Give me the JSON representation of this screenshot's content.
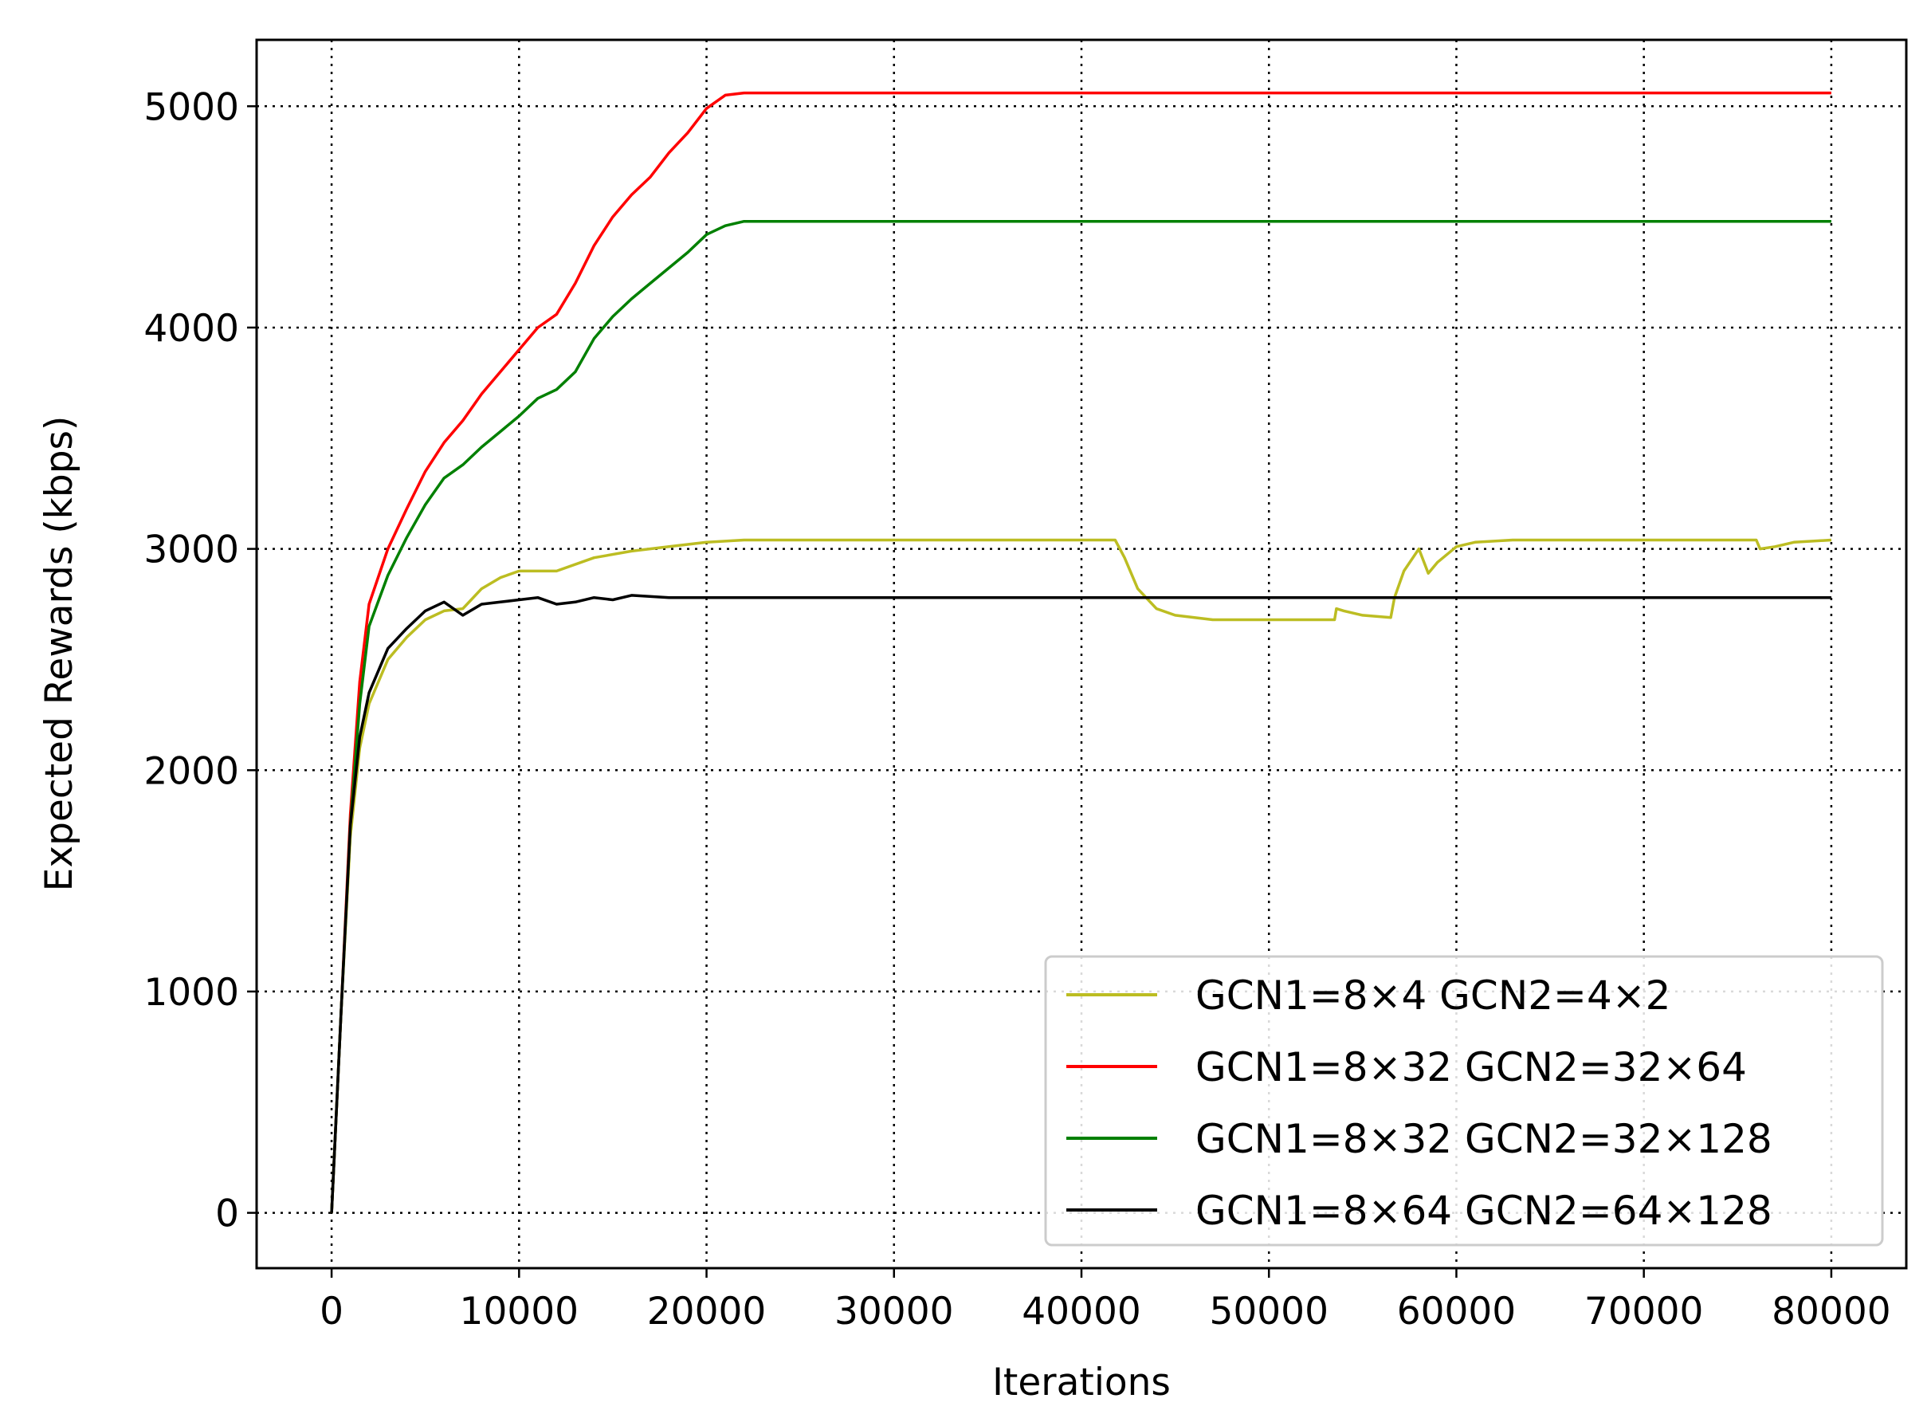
{
  "chart_data": {
    "type": "line",
    "title": "",
    "xlabel": "Iterations",
    "ylabel": "Expected Rewards (kbps)",
    "xlim": [
      -4000,
      84000
    ],
    "ylim": [
      -250,
      5300
    ],
    "xticks": [
      0,
      10000,
      20000,
      30000,
      40000,
      50000,
      60000,
      70000,
      80000
    ],
    "yticks": [
      0,
      1000,
      2000,
      3000,
      4000,
      5000
    ],
    "grid": true,
    "grid_style": "dotted",
    "legend_position": "lower-right",
    "series": [
      {
        "name": "GCN1=8×4   GCN2=4×2",
        "color": "#bcbd22",
        "points": [
          [
            0,
            0
          ],
          [
            500,
            900
          ],
          [
            1000,
            1700
          ],
          [
            1500,
            2100
          ],
          [
            2000,
            2300
          ],
          [
            3000,
            2500
          ],
          [
            4000,
            2600
          ],
          [
            5000,
            2680
          ],
          [
            6000,
            2720
          ],
          [
            7000,
            2730
          ],
          [
            8000,
            2820
          ],
          [
            9000,
            2870
          ],
          [
            10000,
            2900
          ],
          [
            12000,
            2900
          ],
          [
            14000,
            2960
          ],
          [
            16000,
            2990
          ],
          [
            18000,
            3010
          ],
          [
            20000,
            3030
          ],
          [
            22000,
            3040
          ],
          [
            24000,
            3040
          ],
          [
            30000,
            3040
          ],
          [
            35000,
            3040
          ],
          [
            41800,
            3040
          ],
          [
            42300,
            2960
          ],
          [
            43000,
            2820
          ],
          [
            44000,
            2730
          ],
          [
            45000,
            2700
          ],
          [
            47000,
            2680
          ],
          [
            50000,
            2680
          ],
          [
            53500,
            2680
          ],
          [
            53600,
            2730
          ],
          [
            54000,
            2720
          ],
          [
            55000,
            2700
          ],
          [
            56500,
            2690
          ],
          [
            56700,
            2780
          ],
          [
            57200,
            2900
          ],
          [
            58000,
            3000
          ],
          [
            58500,
            2890
          ],
          [
            59000,
            2940
          ],
          [
            60000,
            3010
          ],
          [
            61000,
            3030
          ],
          [
            63000,
            3040
          ],
          [
            70000,
            3040
          ],
          [
            76000,
            3040
          ],
          [
            76200,
            3000
          ],
          [
            77000,
            3010
          ],
          [
            78000,
            3030
          ],
          [
            80000,
            3040
          ]
        ]
      },
      {
        "name": "GCN1=8×32 GCN2=32×64",
        "color": "#ff0000",
        "points": [
          [
            0,
            0
          ],
          [
            500,
            900
          ],
          [
            1000,
            1800
          ],
          [
            1500,
            2400
          ],
          [
            2000,
            2750
          ],
          [
            3000,
            3000
          ],
          [
            4000,
            3180
          ],
          [
            5000,
            3350
          ],
          [
            6000,
            3480
          ],
          [
            7000,
            3580
          ],
          [
            8000,
            3700
          ],
          [
            9000,
            3800
          ],
          [
            10000,
            3900
          ],
          [
            11000,
            4000
          ],
          [
            12000,
            4060
          ],
          [
            13000,
            4200
          ],
          [
            14000,
            4370
          ],
          [
            15000,
            4500
          ],
          [
            16000,
            4600
          ],
          [
            17000,
            4680
          ],
          [
            18000,
            4790
          ],
          [
            19000,
            4880
          ],
          [
            20000,
            4990
          ],
          [
            21000,
            5050
          ],
          [
            22000,
            5060
          ],
          [
            25000,
            5060
          ],
          [
            40000,
            5060
          ],
          [
            60000,
            5060
          ],
          [
            80000,
            5060
          ]
        ]
      },
      {
        "name": "GCN1=8×32 GCN2=32×128",
        "color": "#008000",
        "points": [
          [
            0,
            0
          ],
          [
            500,
            900
          ],
          [
            1000,
            1750
          ],
          [
            1500,
            2300
          ],
          [
            2000,
            2650
          ],
          [
            3000,
            2880
          ],
          [
            4000,
            3050
          ],
          [
            5000,
            3200
          ],
          [
            6000,
            3320
          ],
          [
            7000,
            3380
          ],
          [
            8000,
            3460
          ],
          [
            9000,
            3530
          ],
          [
            10000,
            3600
          ],
          [
            11000,
            3680
          ],
          [
            12000,
            3720
          ],
          [
            13000,
            3800
          ],
          [
            14000,
            3950
          ],
          [
            15000,
            4050
          ],
          [
            16000,
            4130
          ],
          [
            17000,
            4200
          ],
          [
            18000,
            4270
          ],
          [
            19000,
            4340
          ],
          [
            20000,
            4420
          ],
          [
            21000,
            4460
          ],
          [
            22000,
            4480
          ],
          [
            25000,
            4480
          ],
          [
            40000,
            4480
          ],
          [
            60000,
            4480
          ],
          [
            80000,
            4480
          ]
        ]
      },
      {
        "name": "GCN1=8×64 GCN2=64×128",
        "color": "#000000",
        "points": [
          [
            0,
            0
          ],
          [
            500,
            900
          ],
          [
            1000,
            1750
          ],
          [
            1500,
            2150
          ],
          [
            2000,
            2350
          ],
          [
            3000,
            2550
          ],
          [
            4000,
            2640
          ],
          [
            5000,
            2720
          ],
          [
            6000,
            2760
          ],
          [
            7000,
            2700
          ],
          [
            8000,
            2750
          ],
          [
            9000,
            2760
          ],
          [
            10000,
            2770
          ],
          [
            11000,
            2780
          ],
          [
            12000,
            2750
          ],
          [
            13000,
            2760
          ],
          [
            14000,
            2780
          ],
          [
            15000,
            2770
          ],
          [
            16000,
            2790
          ],
          [
            18000,
            2780
          ],
          [
            20000,
            2780
          ],
          [
            30000,
            2780
          ],
          [
            40000,
            2780
          ],
          [
            60000,
            2780
          ],
          [
            80000,
            2780
          ]
        ]
      }
    ]
  }
}
